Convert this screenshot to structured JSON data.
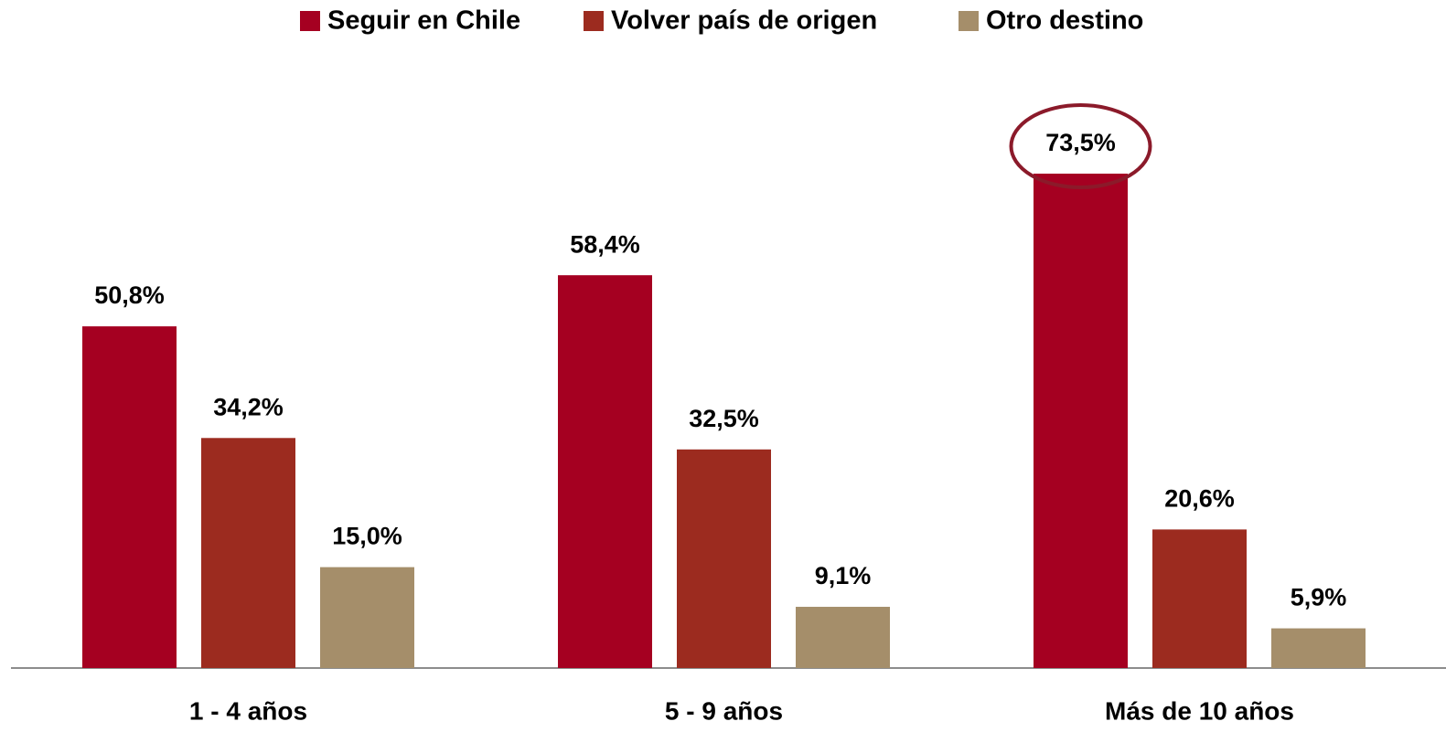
{
  "chart_data": {
    "type": "bar",
    "categories": [
      "1 - 4 años",
      "5 - 9 años",
      "Más de 10 años"
    ],
    "series": [
      {
        "name": "Seguir en Chile",
        "color": "#a50021",
        "values": [
          50.8,
          58.4,
          73.5
        ],
        "value_labels": [
          "50,8%",
          "58,4%",
          "73,5%"
        ]
      },
      {
        "name": "Volver país de origen",
        "color": "#9c2b1f",
        "values": [
          34.2,
          32.5,
          20.6
        ],
        "value_labels": [
          "34,2%",
          "32,5%",
          "20,6%"
        ]
      },
      {
        "name": "Otro destino",
        "color": "#a58e6a",
        "values": [
          15.0,
          9.1,
          5.9
        ],
        "value_labels": [
          "15,0%",
          "9,1%",
          "5,9%"
        ]
      }
    ],
    "legend": "top"
  }
}
